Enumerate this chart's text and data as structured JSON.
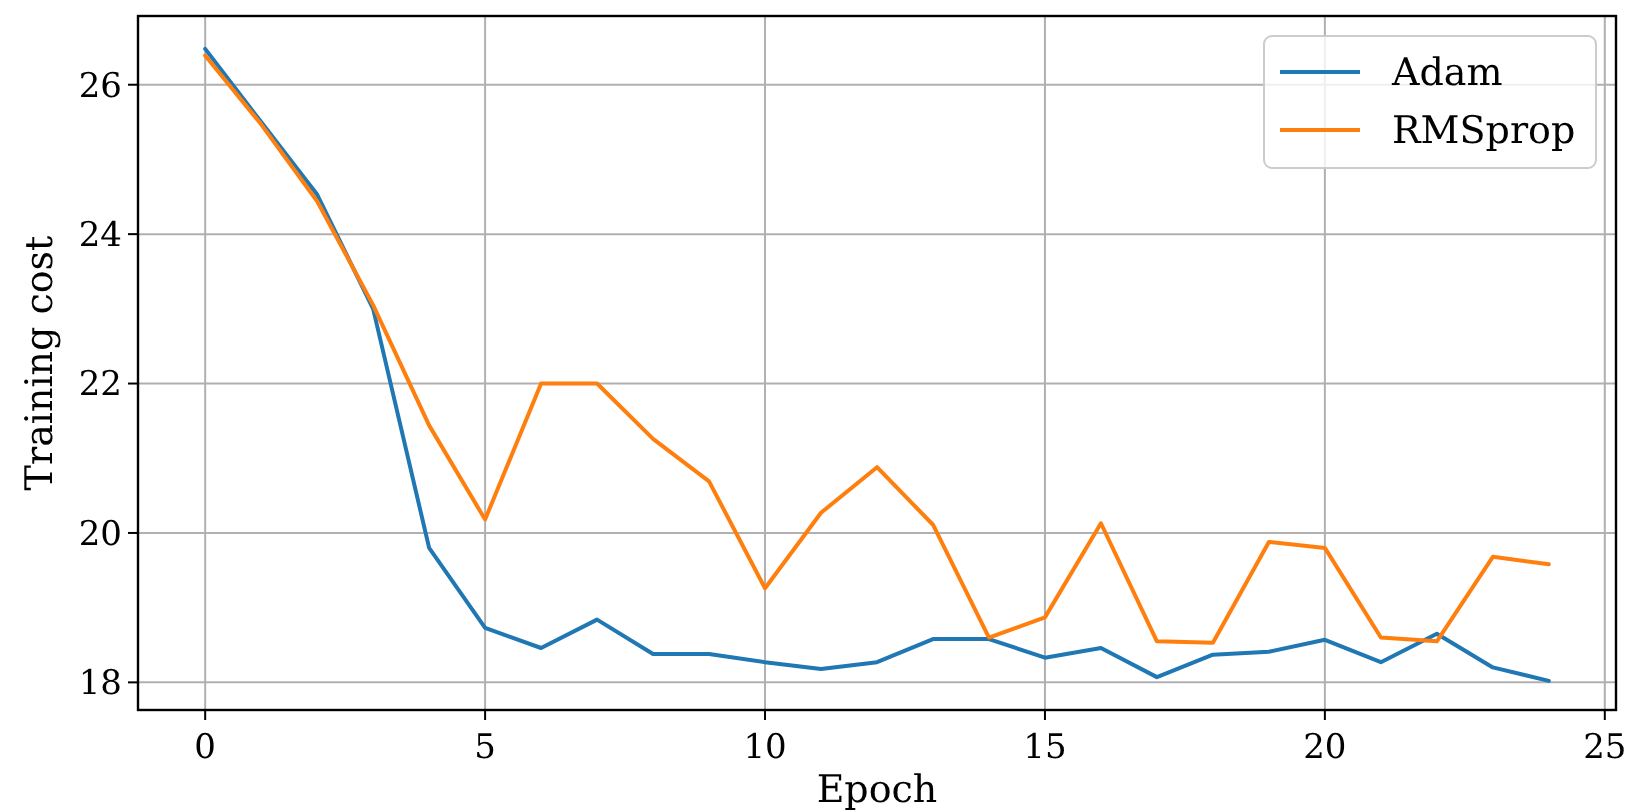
{
  "chart_data": {
    "type": "line",
    "xlabel": "Epoch",
    "ylabel": "Training cost",
    "x": [
      0,
      1,
      2,
      3,
      4,
      5,
      6,
      7,
      8,
      9,
      10,
      11,
      12,
      13,
      14,
      15,
      16,
      17,
      18,
      19,
      20,
      21,
      22,
      23,
      24
    ],
    "series": [
      {
        "name": "Adam",
        "color": "#1f77b4",
        "values": [
          26.48,
          25.5,
          24.53,
          23.0,
          19.8,
          18.73,
          18.46,
          18.84,
          18.38,
          18.38,
          18.27,
          18.18,
          18.27,
          18.58,
          18.58,
          18.33,
          18.46,
          18.07,
          18.37,
          18.41,
          18.57,
          18.27,
          18.65,
          18.2,
          18.02
        ]
      },
      {
        "name": "RMSprop",
        "color": "#ff7f0e",
        "values": [
          26.39,
          25.47,
          24.44,
          23.05,
          21.44,
          20.18,
          22.0,
          22.0,
          21.26,
          20.69,
          19.26,
          20.27,
          20.88,
          20.11,
          18.6,
          18.87,
          20.13,
          18.55,
          18.53,
          19.88,
          19.8,
          18.6,
          18.55,
          19.68,
          19.58
        ]
      }
    ],
    "xlim": [
      -1.2,
      25.2
    ],
    "ylim": [
      17.63,
      26.92
    ],
    "xticks": [
      0,
      5,
      10,
      15,
      20,
      25
    ],
    "yticks": [
      18,
      20,
      22,
      24,
      26
    ],
    "grid": true,
    "legend": "top right",
    "line_style": "solid"
  }
}
